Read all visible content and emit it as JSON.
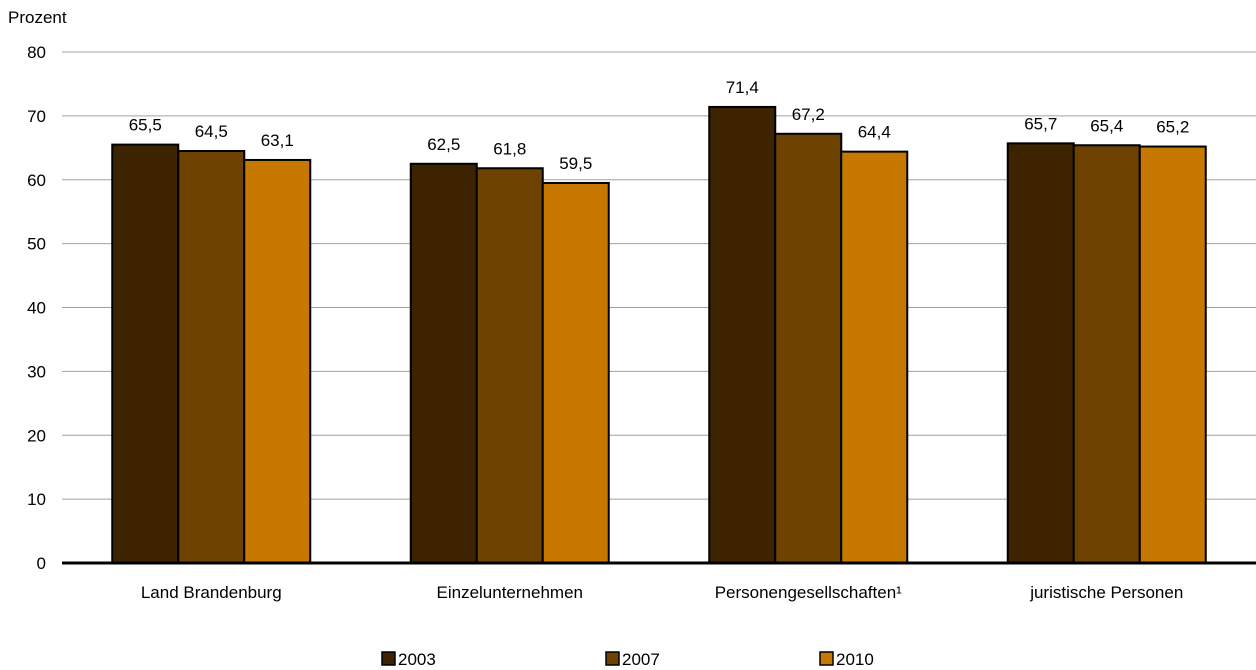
{
  "chart_data": {
    "type": "bar",
    "title": "",
    "xlabel": "",
    "ylabel": "Prozent",
    "ylim": [
      0,
      80
    ],
    "yticks": [
      "0",
      "10",
      "20",
      "30",
      "40",
      "50",
      "60",
      "70",
      "80"
    ],
    "grid": true,
    "legend_position": "bottom",
    "categories": [
      "Land Brandenburg",
      "Einzelunternehmen",
      "Personengesellschaften¹",
      "juristische Personen"
    ],
    "series": [
      {
        "name": "2003",
        "color": "#3d2300",
        "values": [
          65.5,
          62.5,
          71.4,
          65.7
        ],
        "labels": [
          "65,5",
          "62,5",
          "71,4",
          "65,7"
        ]
      },
      {
        "name": "2007",
        "color": "#6e4200",
        "values": [
          64.5,
          61.8,
          67.2,
          65.4
        ],
        "labels": [
          "64,5",
          "61,8",
          "67,2",
          "65,4"
        ]
      },
      {
        "name": "2010",
        "color": "#c67800",
        "values": [
          63.1,
          59.5,
          64.4,
          65.2
        ],
        "labels": [
          "63,1",
          "59,5",
          "64,4",
          "65,2"
        ]
      }
    ]
  }
}
